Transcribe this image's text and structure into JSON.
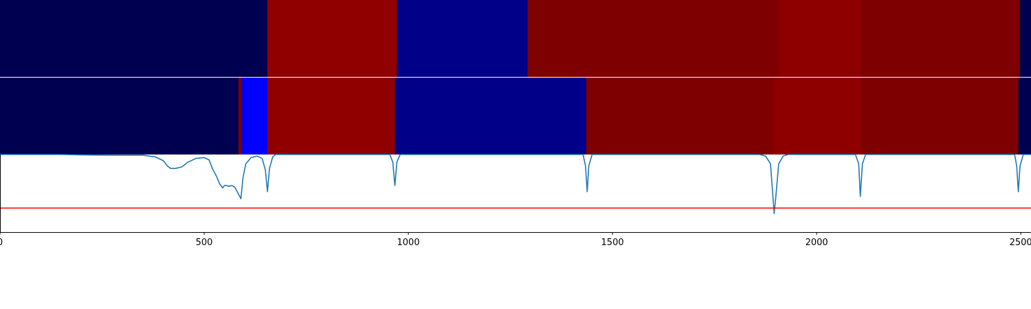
{
  "chart_data": [
    {
      "type": "heatmap",
      "row": "top",
      "segments": [
        {
          "x0": 0,
          "x1": 655,
          "color": "#000050"
        },
        {
          "x0": 655,
          "x1": 972,
          "color": "#900000"
        },
        {
          "x0": 972,
          "x1": 1292,
          "color": "#000088"
        },
        {
          "x0": 1292,
          "x1": 1908,
          "color": "#7f0000"
        },
        {
          "x0": 1908,
          "x1": 2108,
          "color": "#8e0000"
        },
        {
          "x0": 2108,
          "x1": 2498,
          "color": "#7f0000"
        },
        {
          "x0": 2498,
          "x1": 2525,
          "color": "#000050"
        }
      ]
    },
    {
      "type": "heatmap",
      "row": "bottom",
      "segments": [
        {
          "x0": 0,
          "x1": 584,
          "color": "#000050"
        },
        {
          "x0": 584,
          "x1": 591,
          "color": "#7f0000"
        },
        {
          "x0": 591,
          "x1": 655,
          "color": "#0000ff"
        },
        {
          "x0": 655,
          "x1": 967,
          "color": "#900000"
        },
        {
          "x0": 967,
          "x1": 1436,
          "color": "#000088"
        },
        {
          "x0": 1436,
          "x1": 1895,
          "color": "#7f0000"
        },
        {
          "x0": 1895,
          "x1": 2108,
          "color": "#8e0000"
        },
        {
          "x0": 2108,
          "x1": 2494,
          "color": "#7f0000"
        },
        {
          "x0": 2494,
          "x1": 2525,
          "color": "#000050"
        }
      ]
    },
    {
      "type": "line",
      "x_range": [
        0,
        2525
      ],
      "y_range": [
        0,
        1
      ],
      "xticks": [
        0,
        500,
        1000,
        1500,
        2000,
        2500
      ],
      "xtick_labels": [
        "0",
        "500",
        "1000",
        "1500",
        "2000",
        "2500"
      ],
      "series": [
        {
          "color": "#1f77b4",
          "points": [
            [
              0,
              1.0
            ],
            [
              150,
              1.0
            ],
            [
              200,
              0.995
            ],
            [
              280,
              0.99
            ],
            [
              350,
              0.99
            ],
            [
              380,
              0.97
            ],
            [
              400,
              0.92
            ],
            [
              410,
              0.85
            ],
            [
              418,
              0.82
            ],
            [
              430,
              0.82
            ],
            [
              445,
              0.84
            ],
            [
              460,
              0.9
            ],
            [
              480,
              0.95
            ],
            [
              500,
              0.96
            ],
            [
              512,
              0.93
            ],
            [
              520,
              0.82
            ],
            [
              530,
              0.72
            ],
            [
              538,
              0.62
            ],
            [
              545,
              0.57
            ],
            [
              550,
              0.6
            ],
            [
              555,
              0.6
            ],
            [
              560,
              0.59
            ],
            [
              568,
              0.6
            ],
            [
              575,
              0.58
            ],
            [
              580,
              0.53
            ],
            [
              585,
              0.48
            ],
            [
              590,
              0.43
            ],
            [
              595,
              0.7
            ],
            [
              602,
              0.88
            ],
            [
              615,
              0.96
            ],
            [
              630,
              0.98
            ],
            [
              642,
              0.95
            ],
            [
              650,
              0.8
            ],
            [
              655,
              0.52
            ],
            [
              660,
              0.82
            ],
            [
              668,
              0.97
            ],
            [
              675,
              1.0
            ],
            [
              955,
              1.0
            ],
            [
              962,
              0.9
            ],
            [
              967,
              0.6
            ],
            [
              972,
              0.9
            ],
            [
              980,
              1.0
            ],
            [
              1428,
              1.0
            ],
            [
              1434,
              0.85
            ],
            [
              1438,
              0.52
            ],
            [
              1442,
              0.85
            ],
            [
              1450,
              1.0
            ],
            [
              1860,
              1.0
            ],
            [
              1875,
              0.98
            ],
            [
              1887,
              0.88
            ],
            [
              1893,
              0.45
            ],
            [
              1896,
              0.24
            ],
            [
              1900,
              0.45
            ],
            [
              1907,
              0.88
            ],
            [
              1918,
              0.98
            ],
            [
              1930,
              1.0
            ],
            [
              2095,
              1.0
            ],
            [
              2103,
              0.88
            ],
            [
              2107,
              0.46
            ],
            [
              2112,
              0.88
            ],
            [
              2120,
              1.0
            ],
            [
              2485,
              1.0
            ],
            [
              2490,
              0.85
            ],
            [
              2494,
              0.52
            ],
            [
              2498,
              0.85
            ],
            [
              2506,
              1.0
            ],
            [
              2525,
              1.0
            ]
          ]
        },
        {
          "color": "#ff0000",
          "points": [
            [
              0,
              0.31
            ],
            [
              2525,
              0.31
            ]
          ]
        }
      ]
    }
  ]
}
